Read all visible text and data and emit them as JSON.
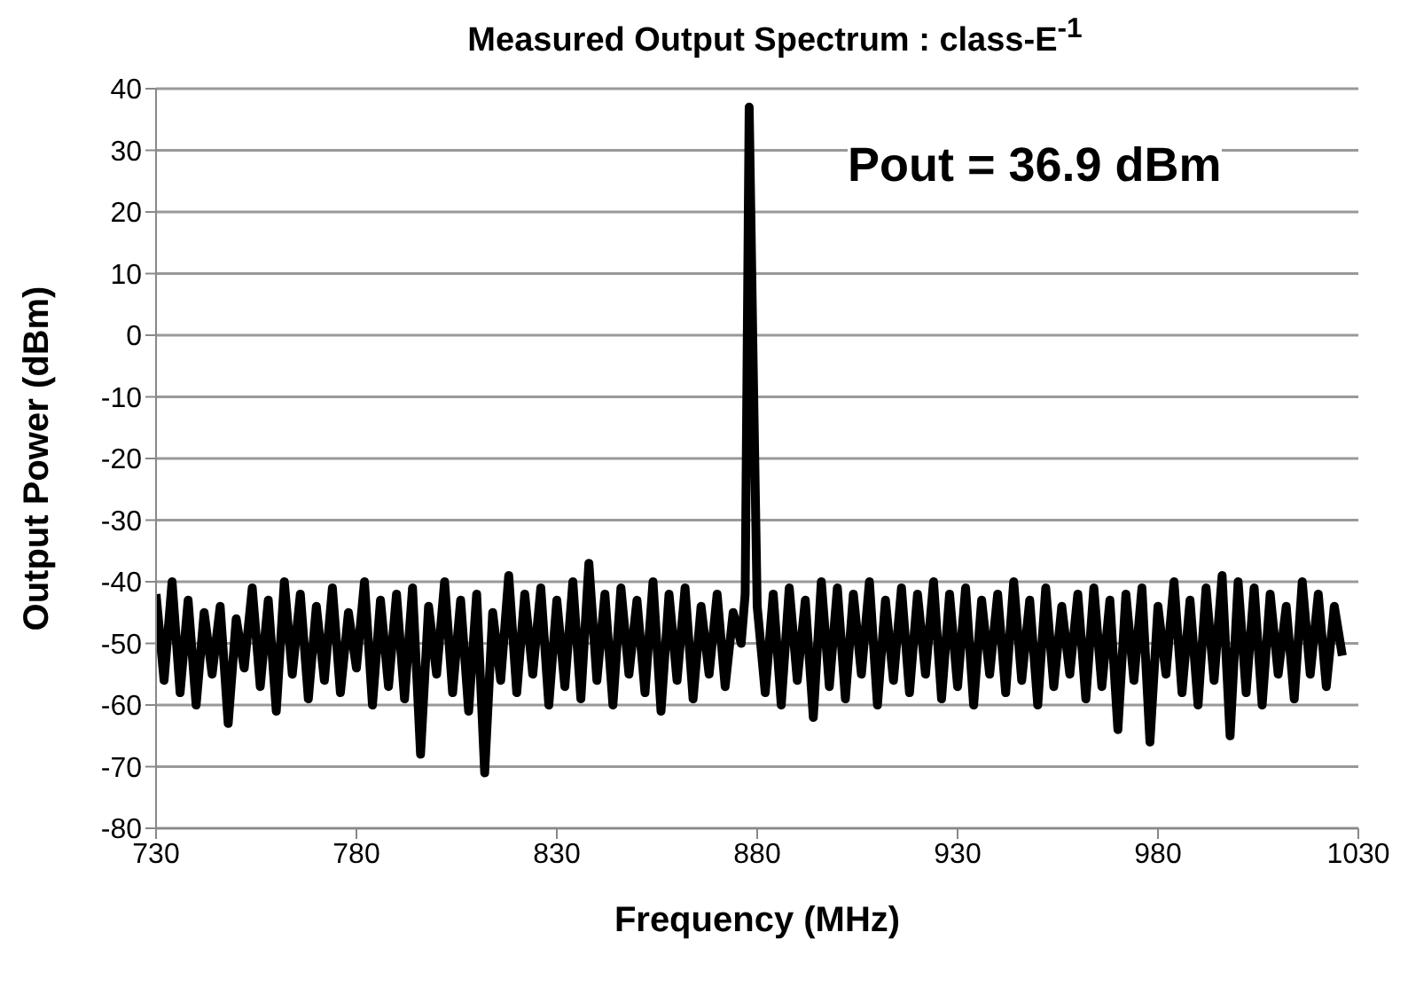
{
  "chart_data": {
    "type": "line",
    "title": "Measured Output Spectrum : class-E$^{-1}$",
    "xlabel": "Frequency (MHz)",
    "ylabel": "Output Power (dBm)",
    "annotations": [
      "Pout = 36.9 dBm"
    ],
    "xlim": [
      730,
      1030
    ],
    "xticks": [
      730,
      780,
      830,
      880,
      930,
      980,
      1030
    ],
    "ylim": [
      -80,
      40
    ],
    "yticks": [
      -80,
      -70,
      -60,
      -50,
      -40,
      -30,
      -20,
      -10,
      0,
      10,
      20,
      30,
      40
    ],
    "grid": "y",
    "series": [
      {
        "color": "#000000",
        "x": [
          730,
          732,
          734,
          736,
          738,
          740,
          742,
          744,
          746,
          748,
          750,
          752,
          754,
          756,
          758,
          760,
          762,
          764,
          766,
          768,
          770,
          772,
          774,
          776,
          778,
          780,
          782,
          784,
          786,
          788,
          790,
          792,
          794,
          796,
          798,
          800,
          802,
          804,
          806,
          808,
          810,
          812,
          814,
          816,
          818,
          820,
          822,
          824,
          826,
          828,
          830,
          832,
          834,
          836,
          838,
          840,
          842,
          844,
          846,
          848,
          850,
          852,
          854,
          856,
          858,
          860,
          862,
          864,
          866,
          868,
          870,
          872,
          874,
          876,
          877,
          878,
          879,
          880,
          882,
          884,
          886,
          888,
          890,
          892,
          894,
          896,
          898,
          900,
          902,
          904,
          906,
          908,
          910,
          912,
          914,
          916,
          918,
          920,
          922,
          924,
          926,
          928,
          930,
          932,
          934,
          936,
          938,
          940,
          942,
          944,
          946,
          948,
          950,
          952,
          954,
          956,
          958,
          960,
          962,
          964,
          966,
          968,
          970,
          972,
          974,
          976,
          978,
          980,
          982,
          984,
          986,
          988,
          990,
          992,
          994,
          996,
          998,
          1000,
          1002,
          1004,
          1006,
          1008,
          1010,
          1012,
          1014,
          1016,
          1018,
          1020,
          1022,
          1024,
          1026
        ],
        "values": [
          -42,
          -56,
          -40,
          -58,
          -43,
          -60,
          -45,
          -55,
          -44,
          -63,
          -46,
          -54,
          -41,
          -57,
          -43,
          -61,
          -40,
          -55,
          -42,
          -59,
          -44,
          -56,
          -41,
          -58,
          -45,
          -54,
          -40,
          -60,
          -43,
          -57,
          -42,
          -59,
          -41,
          -68,
          -44,
          -55,
          -40,
          -58,
          -43,
          -61,
          -42,
          -71,
          -45,
          -56,
          -39,
          -58,
          -42,
          -55,
          -41,
          -60,
          -43,
          -57,
          -40,
          -59,
          -37,
          -56,
          -42,
          -60,
          -41,
          -55,
          -43,
          -58,
          -40,
          -61,
          -42,
          -56,
          -41,
          -59,
          -44,
          -55,
          -42,
          -57,
          -45,
          -50,
          -42,
          37,
          -5,
          -44,
          -58,
          -42,
          -60,
          -41,
          -56,
          -43,
          -62,
          -40,
          -57,
          -41,
          -59,
          -42,
          -55,
          -40,
          -60,
          -43,
          -56,
          -41,
          -58,
          -42,
          -55,
          -40,
          -59,
          -42,
          -57,
          -41,
          -60,
          -43,
          -55,
          -42,
          -58,
          -40,
          -56,
          -43,
          -60,
          -41,
          -57,
          -44,
          -55,
          -42,
          -59,
          -41,
          -57,
          -43,
          -64,
          -42,
          -56,
          -41,
          -66,
          -44,
          -55,
          -40,
          -58,
          -43,
          -60,
          -41,
          -56,
          -39,
          -65,
          -40,
          -58,
          -41,
          -60,
          -42,
          -55,
          -44,
          -59,
          -40,
          -55,
          -42,
          -57,
          -44,
          -52
        ]
      }
    ]
  }
}
